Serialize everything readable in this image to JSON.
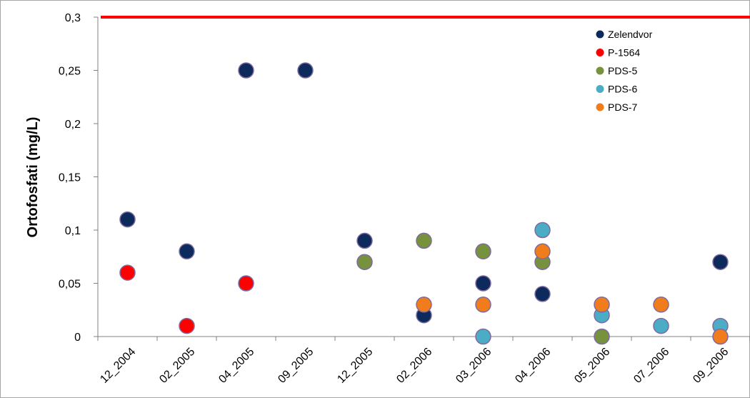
{
  "chart_data": {
    "type": "scatter",
    "title": "",
    "xlabel": "",
    "ylabel": "Ortofosfati (mg/L)",
    "categories": [
      "12_2004",
      "02_2005",
      "04_2005",
      "09_2005",
      "12_2005",
      "02_2006",
      "03_2006",
      "04_2006",
      "05_2006",
      "07_2006",
      "09_2006"
    ],
    "yticks": [
      "0",
      "0,05",
      "0,1",
      "0,15",
      "0,2",
      "0,25",
      "0,3"
    ],
    "ylim": [
      0,
      0.3
    ],
    "grid": false,
    "legend_position": "top-right",
    "limit_line": {
      "value": 0.3,
      "color": "#ff0000"
    },
    "series": [
      {
        "name": "Zelendvor",
        "color": "#0d2a5c",
        "values": [
          0.11,
          0.08,
          0.25,
          0.25,
          0.09,
          0.02,
          0.05,
          0.04,
          null,
          null,
          0.07
        ]
      },
      {
        "name": "P-1564",
        "color": "#ff0000",
        "values": [
          0.06,
          0.01,
          0.05,
          null,
          null,
          null,
          null,
          null,
          null,
          null,
          null
        ]
      },
      {
        "name": "PDS-5",
        "color": "#76923c",
        "values": [
          null,
          null,
          null,
          null,
          0.07,
          0.09,
          0.08,
          0.07,
          0.0,
          null,
          null
        ]
      },
      {
        "name": "PDS-6",
        "color": "#4bacc6",
        "values": [
          null,
          null,
          null,
          null,
          null,
          null,
          0.0,
          0.1,
          0.02,
          0.01,
          0.01
        ]
      },
      {
        "name": "PDS-7",
        "color": "#f07c1c",
        "values": [
          null,
          null,
          null,
          null,
          null,
          0.03,
          0.03,
          0.08,
          0.03,
          0.03,
          0.0
        ]
      }
    ]
  }
}
